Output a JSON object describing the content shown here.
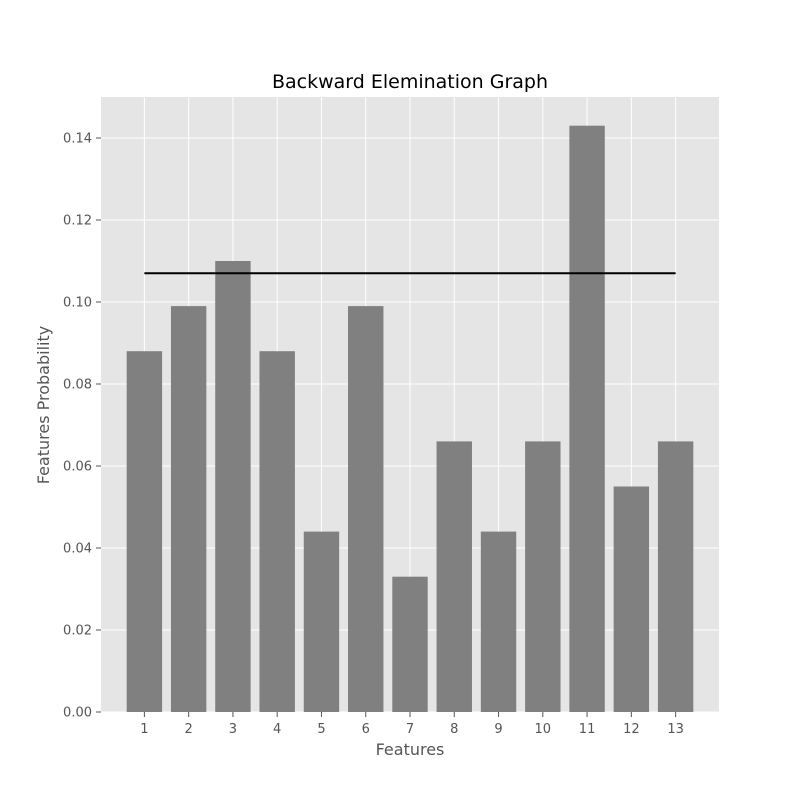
{
  "chart_data": {
    "type": "bar",
    "title": "Backward Elemination Graph",
    "xlabel": "Features",
    "ylabel": "Features Probability",
    "categories": [
      "1",
      "2",
      "3",
      "4",
      "5",
      "6",
      "7",
      "8",
      "9",
      "10",
      "11",
      "12",
      "13"
    ],
    "values": [
      0.088,
      0.099,
      0.11,
      0.088,
      0.044,
      0.099,
      0.033,
      0.066,
      0.044,
      0.066,
      0.143,
      0.055,
      0.066
    ],
    "ylim": [
      0,
      0.15
    ],
    "yticks": [
      0.0,
      0.02,
      0.04,
      0.06,
      0.08,
      0.1,
      0.12,
      0.14
    ],
    "ytick_labels": [
      "0.00",
      "0.02",
      "0.04",
      "0.06",
      "0.08",
      "0.10",
      "0.12",
      "0.14"
    ],
    "threshold_line": {
      "y": 0.107,
      "x_start": "1",
      "x_end": "13"
    },
    "grid": true,
    "style": "ggplot",
    "colors": {
      "bar": "#808080",
      "background": "#e5e5e5",
      "grid": "#ffffff",
      "threshold": "#000000"
    }
  }
}
